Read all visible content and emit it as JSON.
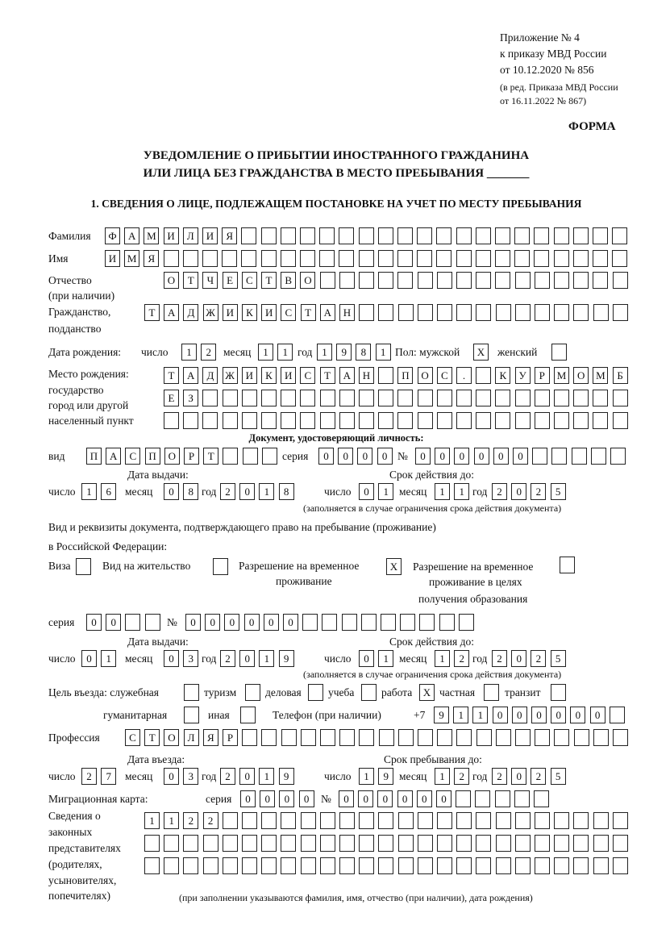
{
  "header": {
    "appendix": "Приложение № 4",
    "order": "к приказу МВД России",
    "order_date": "от 10.12.2020 № 856",
    "edition1": "(в ред. Приказа МВД России",
    "edition2": "от 16.11.2022 № 867)",
    "form_label": "ФОРМА",
    "title1": "УВЕДОМЛЕНИЕ О ПРИБЫТИИ ИНОСТРАННОГО ГРАЖДАНИНА",
    "title2": "ИЛИ ЛИЦА БЕЗ ГРАЖДАНСТВА В МЕСТО ПРЕБЫВАНИЯ _______",
    "section1": "1. СВЕДЕНИЯ О ЛИЦЕ, ПОДЛЕЖАЩЕМ ПОСТАНОВКЕ НА УЧЕТ ПО МЕСТУ ПРЕБЫВАНИЯ"
  },
  "labels": {
    "surname": "Фамилия",
    "name": "Имя",
    "patronymic": "Отчество",
    "if_any": "(при наличии)",
    "citizenship": "Гражданство,",
    "subject": "подданство",
    "birth_date": "Дата рождения:",
    "day": "число",
    "month": "месяц",
    "year": "год",
    "sex_male": "Пол: мужской",
    "sex_female": "женский",
    "birth_place": "Место рождения:",
    "state": "государство",
    "city": "город или другой",
    "settlement": "населенный пункт",
    "id_doc": "Документ, удостоверяющий личность:",
    "kind": "вид",
    "series": "серия",
    "number": "№",
    "issue_date": "Дата выдачи:",
    "valid_until": "Срок действия до:",
    "validity_note": "(заполняется в случае ограничения срока действия документа)",
    "stay_doc1": "Вид и реквизиты документа, подтверждающего право на пребывание (проживание)",
    "stay_doc2": "в Российской Федерации:",
    "visa": "Виза",
    "residence": "Вид на жительство",
    "trp1": "Разрешение на временное",
    "trp2": "проживание",
    "trpe1": "Разрешение на временное",
    "trpe2": "проживание в целях",
    "trpe3": "получения образования",
    "purpose": "Цель въезда: служебная",
    "tourism": "туризм",
    "business": "деловая",
    "study": "учеба",
    "work": "работа",
    "private": "частная",
    "transit": "транзит",
    "humanitarian": "гуманитарная",
    "other": "иная",
    "phone": "Телефон (при наличии)",
    "phone_prefix": "+7",
    "profession": "Профессия",
    "entry_date": "Дата въезда:",
    "stay_until": "Срок пребывания до:",
    "migration_card": "Миграционная карта:",
    "rep1": "Сведения о",
    "rep2": "законных",
    "rep3": "представителях",
    "rep4": "(родителях,",
    "rep5": "усыновителях,",
    "rep6": "попечителях)",
    "rep_note": "(при заполнении указываются фамилия, имя, отчество (при наличии), дата рождения)"
  },
  "fields": {
    "surname": [
      "Ф",
      "А",
      "М",
      "И",
      "Л",
      "И",
      "Я",
      "",
      "",
      "",
      "",
      "",
      "",
      "",
      "",
      "",
      "",
      "",
      "",
      "",
      "",
      "",
      "",
      "",
      "",
      "",
      ""
    ],
    "name": [
      "И",
      "М",
      "Я",
      "",
      "",
      "",
      "",
      "",
      "",
      "",
      "",
      "",
      "",
      "",
      "",
      "",
      "",
      "",
      "",
      "",
      "",
      "",
      "",
      "",
      "",
      "",
      ""
    ],
    "patronymic": [
      "О",
      "Т",
      "Ч",
      "Е",
      "С",
      "Т",
      "В",
      "О",
      "",
      "",
      "",
      "",
      "",
      "",
      "",
      "",
      "",
      "",
      "",
      "",
      "",
      "",
      "",
      ""
    ],
    "citizenship": [
      "Т",
      "А",
      "Д",
      "Ж",
      "И",
      "К",
      "И",
      "С",
      "Т",
      "А",
      "Н",
      "",
      "",
      "",
      "",
      "",
      "",
      "",
      "",
      "",
      "",
      "",
      "",
      "",
      ""
    ],
    "birth_day": [
      "1",
      "2"
    ],
    "birth_month": [
      "1",
      "1"
    ],
    "birth_year": [
      "1",
      "9",
      "8",
      "1"
    ],
    "sex_male": [
      "X"
    ],
    "sex_female": [
      ""
    ],
    "birth_place1": [
      "Т",
      "А",
      "Д",
      "Ж",
      "И",
      "К",
      "И",
      "С",
      "Т",
      "А",
      "Н",
      "",
      "П",
      "О",
      "С",
      ".",
      "",
      "К",
      "У",
      "Р",
      "М",
      "О",
      "М",
      "Б"
    ],
    "birth_place2": [
      "Е",
      "З",
      "",
      "",
      "",
      "",
      "",
      "",
      "",
      "",
      "",
      "",
      "",
      "",
      "",
      "",
      "",
      "",
      "",
      "",
      "",
      "",
      "",
      ""
    ],
    "birth_place3": [
      "",
      "",
      "",
      "",
      "",
      "",
      "",
      "",
      "",
      "",
      "",
      "",
      "",
      "",
      "",
      "",
      "",
      "",
      "",
      "",
      "",
      "",
      "",
      ""
    ],
    "doc_kind": [
      "П",
      "А",
      "С",
      "П",
      "О",
      "Р",
      "Т",
      "",
      "",
      ""
    ],
    "doc_series": [
      "0",
      "0",
      "0",
      "0"
    ],
    "doc_number": [
      "0",
      "0",
      "0",
      "0",
      "0",
      "0",
      "",
      "",
      "",
      "",
      ""
    ],
    "doc_issue_day": [
      "1",
      "6"
    ],
    "doc_issue_month": [
      "0",
      "8"
    ],
    "doc_issue_year": [
      "2",
      "0",
      "1",
      "8"
    ],
    "doc_valid_day": [
      "0",
      "1"
    ],
    "doc_valid_month": [
      "1",
      "1"
    ],
    "doc_valid_year": [
      "2",
      "0",
      "2",
      "5"
    ],
    "visa": [
      ""
    ],
    "residence": [
      ""
    ],
    "trp": [
      "X"
    ],
    "trpe": [
      ""
    ],
    "stay_series": [
      "0",
      "0",
      "",
      ""
    ],
    "stay_number": [
      "0",
      "0",
      "0",
      "0",
      "0",
      "0",
      "",
      "",
      "",
      "",
      "",
      "",
      "",
      "",
      ""
    ],
    "stay_issue_day": [
      "0",
      "1"
    ],
    "stay_issue_month": [
      "0",
      "3"
    ],
    "stay_issue_year": [
      "2",
      "0",
      "1",
      "9"
    ],
    "stay_valid_day": [
      "0",
      "1"
    ],
    "stay_valid_month": [
      "1",
      "2"
    ],
    "stay_valid_year": [
      "2",
      "0",
      "2",
      "5"
    ],
    "p_service": [
      ""
    ],
    "p_tourism": [
      ""
    ],
    "p_business": [
      ""
    ],
    "p_study": [
      ""
    ],
    "p_work": [
      "X"
    ],
    "p_private": [
      ""
    ],
    "p_transit": [
      ""
    ],
    "p_humanitarian": [
      ""
    ],
    "p_other": [
      ""
    ],
    "phone": [
      "9",
      "1",
      "1",
      "0",
      "0",
      "0",
      "0",
      "0",
      "0",
      ""
    ],
    "profession": [
      "С",
      "Т",
      "О",
      "Л",
      "Я",
      "Р",
      "",
      "",
      "",
      "",
      "",
      "",
      "",
      "",
      "",
      "",
      "",
      "",
      "",
      "",
      "",
      "",
      "",
      "",
      "",
      ""
    ],
    "entry_day": [
      "2",
      "7"
    ],
    "entry_month": [
      "0",
      "3"
    ],
    "entry_year": [
      "2",
      "0",
      "1",
      "9"
    ],
    "stay_until_day": [
      "1",
      "9"
    ],
    "stay_until_month": [
      "1",
      "2"
    ],
    "stay_until_year": [
      "2",
      "0",
      "2",
      "5"
    ],
    "mc_series": [
      "0",
      "0",
      "0",
      "0"
    ],
    "mc_number": [
      "0",
      "0",
      "0",
      "0",
      "0",
      "0",
      "",
      "",
      "",
      "",
      ""
    ],
    "rep1": [
      "1",
      "1",
      "2",
      "2",
      "",
      "",
      "",
      "",
      "",
      "",
      "",
      "",
      "",
      "",
      "",
      "",
      "",
      "",
      "",
      "",
      "",
      "",
      "",
      "",
      ""
    ],
    "rep2": [
      "",
      "",
      "",
      "",
      "",
      "",
      "",
      "",
      "",
      "",
      "",
      "",
      "",
      "",
      "",
      "",
      "",
      "",
      "",
      "",
      "",
      "",
      "",
      "",
      ""
    ],
    "rep3": [
      "",
      "",
      "",
      "",
      "",
      "",
      "",
      "",
      "",
      "",
      "",
      "",
      "",
      "",
      "",
      "",
      "",
      "",
      "",
      "",
      "",
      "",
      "",
      "",
      ""
    ]
  }
}
